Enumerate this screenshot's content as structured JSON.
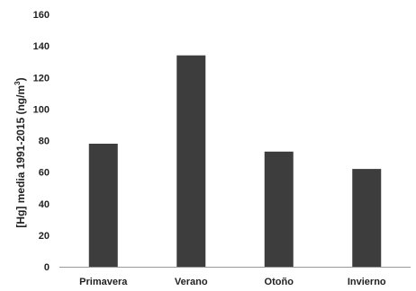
{
  "chart_data": {
    "type": "bar",
    "categories": [
      "Primavera",
      "Verano",
      "Otoño",
      "Invierno"
    ],
    "values": [
      78,
      134,
      73,
      62
    ],
    "title": "",
    "xlabel": "",
    "ylabel": "[Hg] media 1991-2015 (ng/m3)",
    "ylabel_parts": {
      "main": "[Hg] media 1991-2015 (ng/m",
      "sup": "3",
      "end": ")"
    },
    "ylim": [
      0,
      160
    ],
    "yticks": [
      "0",
      "20",
      "40",
      "60",
      "80",
      "100",
      "120",
      "140",
      "160"
    ],
    "grid": false,
    "legend": "none",
    "bar_color": "#3d3d3d",
    "axis_color": "#999999"
  }
}
